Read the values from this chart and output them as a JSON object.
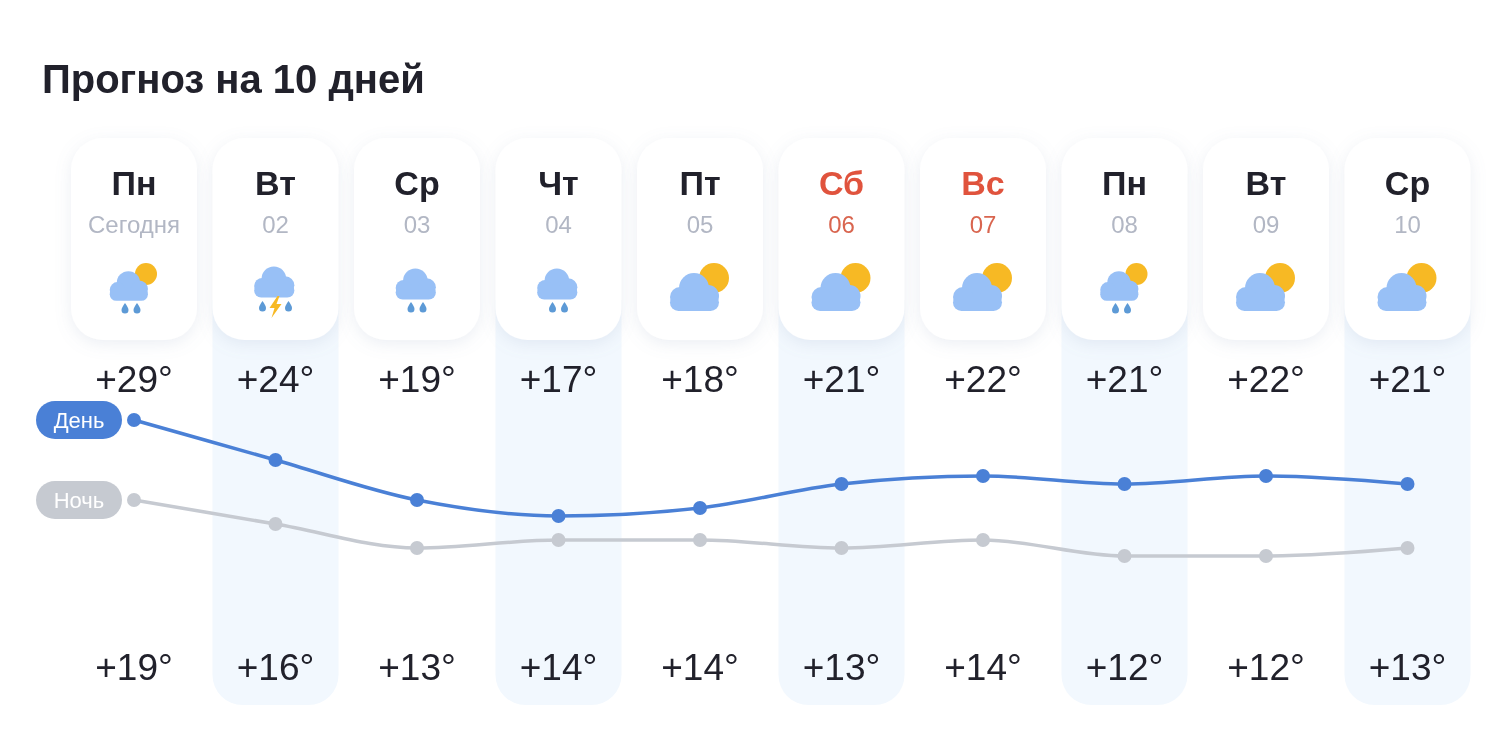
{
  "chart_data": {
    "type": "line",
    "title": "Прогноз на 10 дней",
    "categories": [
      "Пн\nСегодня",
      "Вт\n02",
      "Ср\n03",
      "Чт\n04",
      "Пт\n05",
      "Сб\n06",
      "Вс\n07",
      "Пн\n08",
      "Вт\n09",
      "Ср\n10"
    ],
    "series": [
      {
        "name": "День",
        "color": "#4a80d6",
        "values": [
          29,
          24,
          19,
          17,
          18,
          21,
          22,
          21,
          22,
          21
        ],
        "value_labels": [
          "+29°",
          "+24°",
          "+19°",
          "+17°",
          "+18°",
          "+21°",
          "+22°",
          "+21°",
          "+22°",
          "+21°"
        ]
      },
      {
        "name": "Ночь",
        "color": "#c6cad1",
        "values": [
          19,
          16,
          13,
          14,
          14,
          13,
          14,
          12,
          12,
          13
        ],
        "value_labels": [
          "+19°",
          "+16°",
          "+13°",
          "+14°",
          "+14°",
          "+13°",
          "+14°",
          "+12°",
          "+12°",
          "+13°"
        ]
      }
    ],
    "tick_labels": "x",
    "marker": "circle",
    "line_style": "solid"
  }
}
